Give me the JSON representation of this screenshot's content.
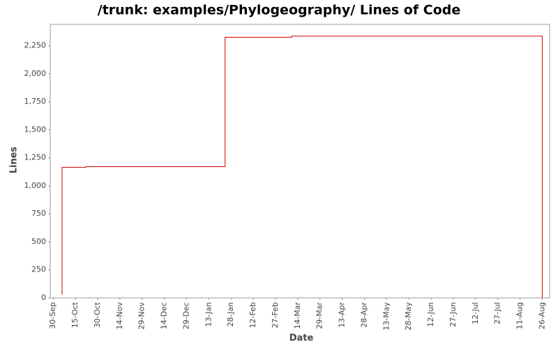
{
  "chart_data": {
    "type": "step",
    "title": "/trunk: examples/Phylogeography/ Lines of Code",
    "x_label": "Date",
    "y_label": "Lines",
    "x": [
      "6-Oct",
      "6-Oct",
      "22-Oct",
      "24-Jan",
      "10-Mar",
      "26-Aug"
    ],
    "series": [
      {
        "name": "Lines",
        "color": "#cc0000",
        "values": [
          30,
          1165,
          1170,
          2325,
          2335,
          0
        ]
      }
    ],
    "xlim": [
      "28-Sep",
      "31-Aug"
    ],
    "xticks": [
      "30-Sep",
      "15-Oct",
      "30-Oct",
      "14-Nov",
      "29-Nov",
      "14-Dec",
      "29-Dec",
      "13-Jan",
      "28-Jan",
      "12-Feb",
      "27-Feb",
      "14-Mar",
      "29-Mar",
      "13-Apr",
      "28-Apr",
      "13-May",
      "28-May",
      "12-Jun",
      "27-Jun",
      "12-Jul",
      "27-Jul",
      "11-Aug",
      "26-Aug"
    ],
    "ylim": [
      0,
      2440
    ],
    "yticks": [
      0,
      250,
      500,
      750,
      {
        "value": 1000,
        "label": "1,000"
      },
      {
        "value": 1250,
        "label": "1,250"
      },
      {
        "value": 1500,
        "label": "1,500"
      },
      {
        "value": 1750,
        "label": "1,750"
      },
      {
        "value": 2000,
        "label": "2,000"
      },
      {
        "value": 2250,
        "label": "2,250"
      }
    ],
    "grid": false
  }
}
